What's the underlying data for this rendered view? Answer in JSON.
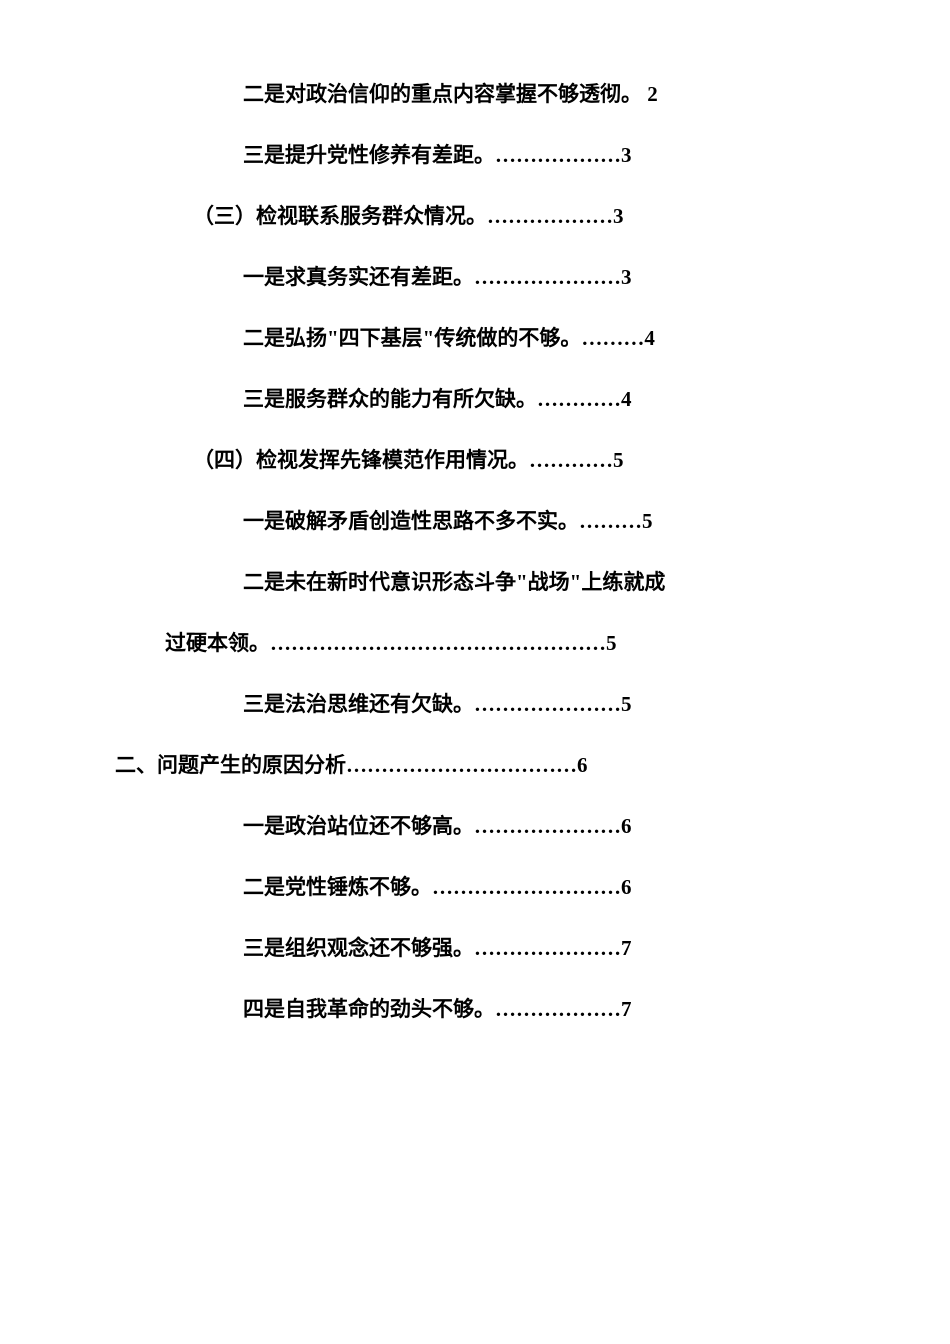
{
  "document": {
    "background_color": "#ffffff",
    "text_color": "#000000",
    "font_family": "SimSun",
    "font_weight": "bold",
    "font_size": 21,
    "line_spacing": 31
  },
  "toc": {
    "entries": [
      {
        "indent_level": 3,
        "text": "二是对政治信仰的重点内容掌握不够透彻。",
        "dots": "",
        "page": "2",
        "has_space_before_page": true
      },
      {
        "indent_level": 3,
        "text": "三是提升党性修养有差距。",
        "dots": "………………",
        "page": "3",
        "has_space_before_page": false
      },
      {
        "indent_level": 2,
        "text": "（三）检视联系服务群众情况。",
        "dots": "………………",
        "page": "3",
        "has_space_before_page": false
      },
      {
        "indent_level": 3,
        "text": "一是求真务实还有差距。",
        "dots": "…………………",
        "page": "3",
        "has_space_before_page": false
      },
      {
        "indent_level": 3,
        "text": "二是弘扬\"四下基层\"传统做的不够。",
        "dots": "………",
        "page": "4",
        "has_space_before_page": false
      },
      {
        "indent_level": 3,
        "text": "三是服务群众的能力有所欠缺。",
        "dots": "…………",
        "page": "4",
        "has_space_before_page": false
      },
      {
        "indent_level": 2,
        "text": "（四）检视发挥先锋模范作用情况。",
        "dots": "…………",
        "page": "5",
        "has_space_before_page": false
      },
      {
        "indent_level": 3,
        "text": "一是破解矛盾创造性思路不多不实。",
        "dots": "………",
        "page": "5",
        "has_space_before_page": false
      },
      {
        "indent_level": 3,
        "text": "二是未在新时代意识形态斗争\"战场\"上练就成",
        "dots": "",
        "page": "",
        "has_space_before_page": false,
        "is_wrapped": true
      },
      {
        "indent_level": "continuation",
        "text": "过硬本领。",
        "dots": "…………………………………………",
        "page": "5",
        "has_space_before_page": false
      },
      {
        "indent_level": 3,
        "text": "三是法治思维还有欠缺。",
        "dots": "…………………",
        "page": "5",
        "has_space_before_page": false
      },
      {
        "indent_level": 1,
        "text": "二、问题产生的原因分析",
        "dots": "……………………………",
        "page": "6",
        "has_space_before_page": false
      },
      {
        "indent_level": 3,
        "text": "一是政治站位还不够高。",
        "dots": "…………………",
        "page": "6",
        "has_space_before_page": false
      },
      {
        "indent_level": 3,
        "text": "二是党性锤炼不够。",
        "dots": "………………………",
        "page": "6",
        "has_space_before_page": false
      },
      {
        "indent_level": 3,
        "text": "三是组织观念还不够强。",
        "dots": "…………………",
        "page": "7",
        "has_space_before_page": false
      },
      {
        "indent_level": 3,
        "text": "四是自我革命的劲头不够。",
        "dots": "………………",
        "page": "7",
        "has_space_before_page": false
      }
    ]
  }
}
